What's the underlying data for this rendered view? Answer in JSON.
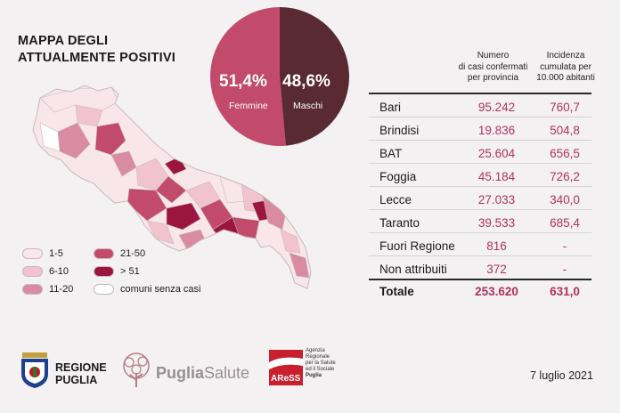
{
  "title": {
    "line1": "MAPPA DEGLI",
    "line2": "ATTUALMENTE POSITIVI"
  },
  "gender": {
    "female_pct": "51,4%",
    "female_label": "Femmine",
    "male_pct": "48,6%",
    "male_label": "Maschi",
    "female_value": 51.4,
    "male_value": 48.6,
    "female_color": "#c24a6a",
    "male_color": "#5a2a33"
  },
  "legend": {
    "items": [
      {
        "label": "1-5",
        "color": "#f8e6ea"
      },
      {
        "label": "6-10",
        "color": "#f1c3ce"
      },
      {
        "label": "11-20",
        "color": "#d98ba3"
      },
      {
        "label": "21-50",
        "color": "#c24a6a"
      },
      {
        "label": "> 51",
        "color": "#9c1440"
      },
      {
        "label": "comuni senza casi",
        "color": "#ffffff"
      }
    ]
  },
  "table": {
    "col1_header": [
      "Numero",
      "di casi confermati",
      "per provincia"
    ],
    "col2_header": [
      "Incidenza",
      "cumulata per",
      "10.000 abitanti"
    ],
    "rows": [
      {
        "name": "Bari",
        "cases": "95.242",
        "incidence": "760,7"
      },
      {
        "name": "Brindisi",
        "cases": "19.836",
        "incidence": "504,8"
      },
      {
        "name": "BAT",
        "cases": "25.604",
        "incidence": "656,5"
      },
      {
        "name": "Foggia",
        "cases": "45.184",
        "incidence": "726,2"
      },
      {
        "name": "Lecce",
        "cases": "27.033",
        "incidence": "340,0"
      },
      {
        "name": "Taranto",
        "cases": "39.533",
        "incidence": "685,4"
      },
      {
        "name": "Fuori Regione",
        "cases": "816",
        "incidence": "-"
      },
      {
        "name": "Non attribuiti",
        "cases": "372",
        "incidence": "-"
      }
    ],
    "total": {
      "name": "Totale",
      "cases": "253.620",
      "incidence": "631,0"
    }
  },
  "footer": {
    "regione_line1": "REGIONE",
    "regione_line2": "PUGLIA",
    "pugliasalute_a": "Puglia",
    "pugliasalute_b": "Salute",
    "aress_logo": "AReSS",
    "aress_text": [
      "Agenzia",
      "Regionale",
      "per la Salute",
      "ed il Sociale",
      "Puglia"
    ],
    "date": "7 luglio 2021"
  }
}
